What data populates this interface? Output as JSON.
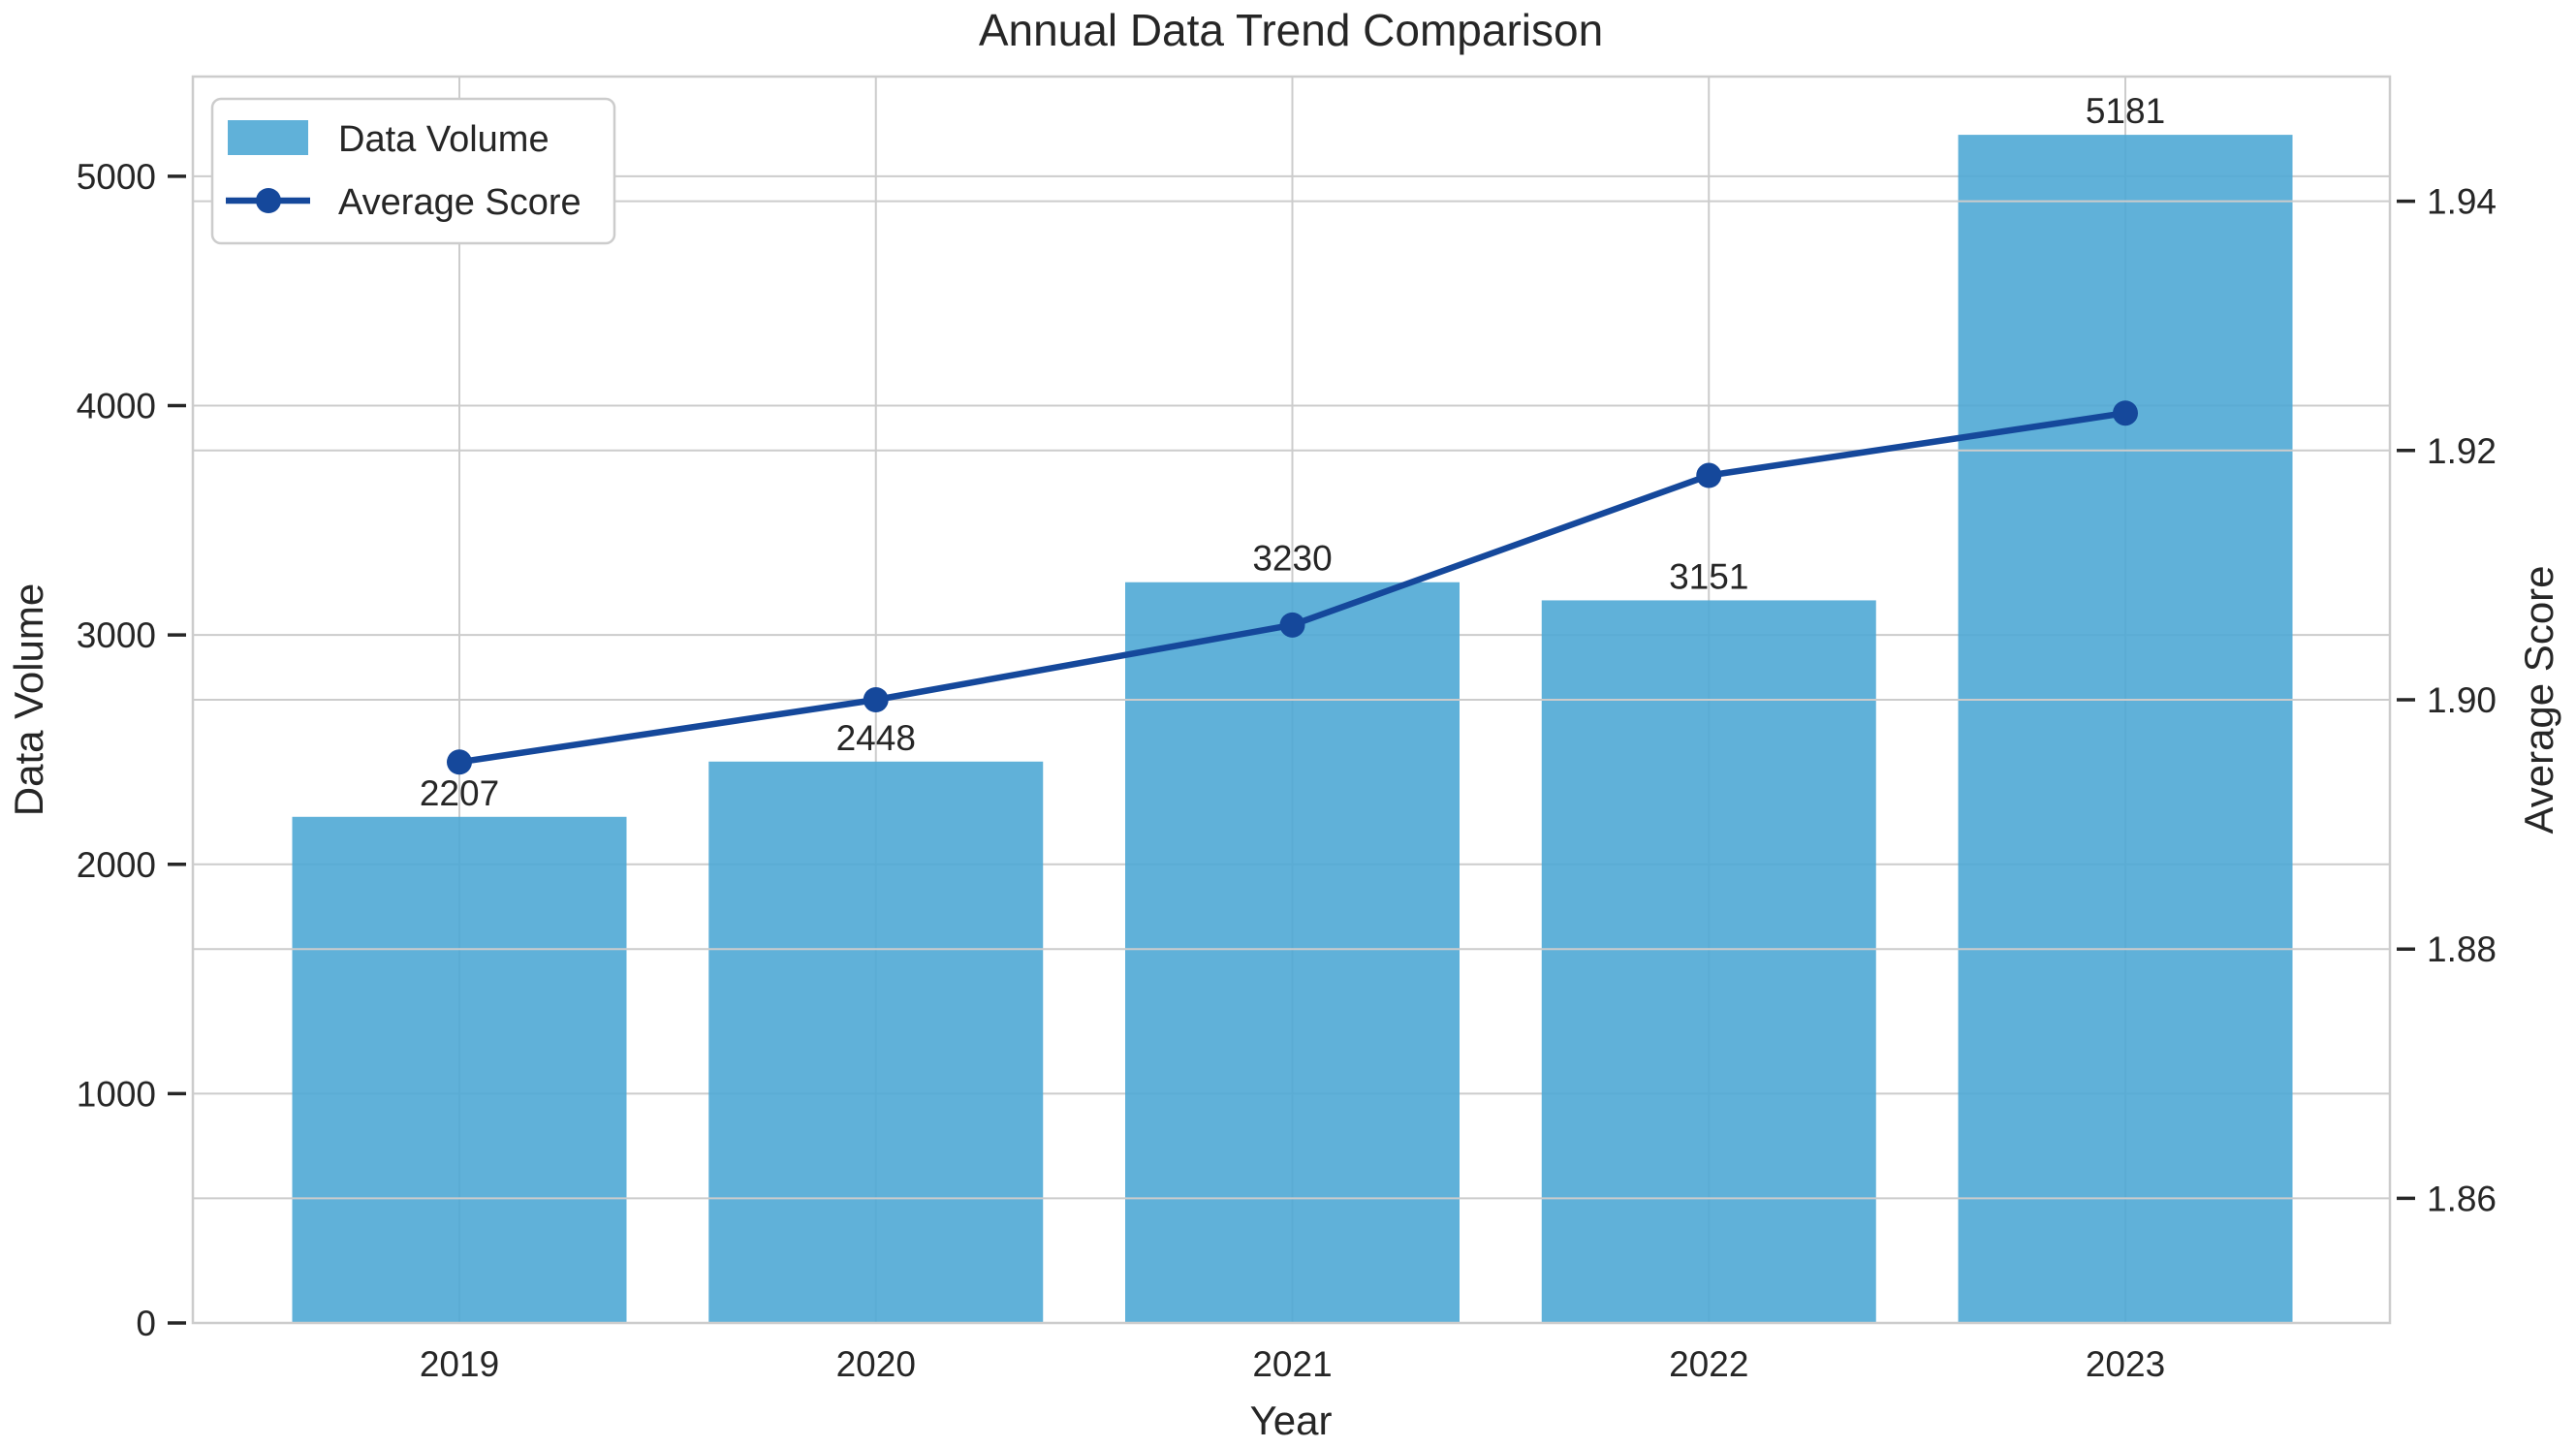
{
  "title": "Annual Data Trend Comparison",
  "axes": {
    "xlabel": "Year",
    "ylabel_left": "Data Volume",
    "ylabel_right": "Average Score"
  },
  "legend": {
    "items": [
      {
        "label": "Data Volume",
        "swatch": "bar"
      },
      {
        "label": "Average Score",
        "swatch": "line-marker"
      }
    ]
  },
  "colors": {
    "bar": "#4fa8d5",
    "line": "#15489b",
    "grid": "#cccccc",
    "spine": "#cccccc",
    "text": "#262626",
    "background": "#ffffff"
  },
  "chart_data": {
    "type": "bar",
    "combo": "bar+line dual axis",
    "title": "Annual Data Trend Comparison",
    "xlabel": "Year",
    "categories": [
      "2019",
      "2020",
      "2021",
      "2022",
      "2023"
    ],
    "series": [
      {
        "name": "Data Volume",
        "type": "bar",
        "axis": "left",
        "values": [
          2207,
          2448,
          3230,
          3151,
          5181
        ]
      },
      {
        "name": "Average Score",
        "type": "line",
        "axis": "right",
        "values": [
          1.895,
          1.9,
          1.906,
          1.918,
          1.923
        ]
      }
    ],
    "bar_labels": [
      "2207",
      "2448",
      "3230",
      "3151",
      "5181"
    ],
    "ylabel_left": "Data Volume",
    "ylabel_right": "Average Score",
    "ylim_left": [
      0,
      5435
    ],
    "ylim_right": [
      1.85,
      1.95
    ],
    "yticks_left": [
      0,
      1000,
      2000,
      3000,
      4000,
      5000
    ],
    "yticks_right": [
      1.86,
      1.88,
      1.9,
      1.92,
      1.94
    ],
    "grid": true,
    "legend_position": "upper left"
  }
}
